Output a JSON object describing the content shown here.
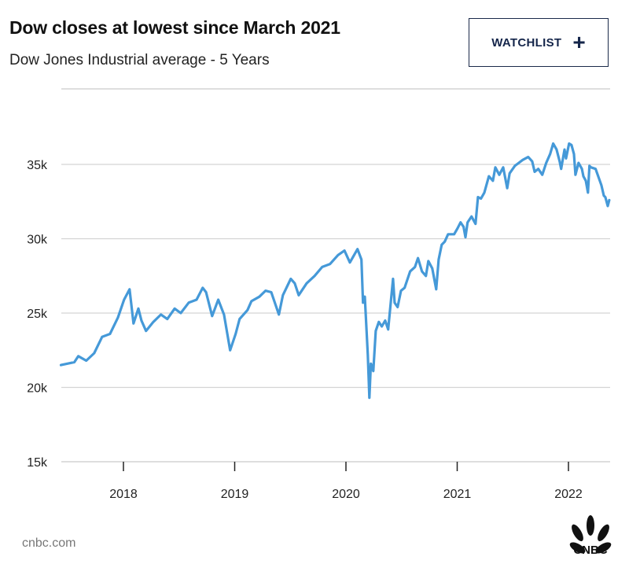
{
  "header": {
    "title": "Dow closes at lowest since March 2021",
    "subtitle": "Dow Jones Industrial average - 5 Years"
  },
  "watchlist_button": {
    "label": "WATCHLIST",
    "icon": "plus-icon"
  },
  "footer": {
    "source": "cnbc.com",
    "logo": "CNBC"
  },
  "colors": {
    "line": "#4599d8",
    "grid": "#d4d4d4",
    "button": "#14254a"
  },
  "chart_data": {
    "type": "line",
    "title": "Dow closes at lowest since March 2021",
    "subtitle": "Dow Jones Industrial average - 5 Years",
    "xlabel": "",
    "ylabel": "",
    "ylim": [
      15000,
      40000
    ],
    "yticks": [
      {
        "value": 15000,
        "label": "15k"
      },
      {
        "value": 20000,
        "label": "20k"
      },
      {
        "value": 25000,
        "label": "25k"
      },
      {
        "value": 30000,
        "label": "30k"
      },
      {
        "value": 35000,
        "label": "35k"
      }
    ],
    "xticks": [
      {
        "value": "2018-01-01",
        "label": "2018"
      },
      {
        "value": "2019-01-01",
        "label": "2019"
      },
      {
        "value": "2020-01-01",
        "label": "2020"
      },
      {
        "value": "2021-01-01",
        "label": "2021"
      },
      {
        "value": "2022-01-01",
        "label": "2022"
      }
    ],
    "xlim": [
      "2017-06-10",
      "2022-05-15"
    ],
    "grid": "horizontal",
    "legend": "none",
    "series": [
      {
        "color": "#4599d8",
        "points": [
          [
            "2017-06-10",
            21500
          ],
          [
            "2017-07-24",
            21700
          ],
          [
            "2017-08-06",
            22100
          ],
          [
            "2017-09-01",
            21800
          ],
          [
            "2017-09-27",
            22300
          ],
          [
            "2017-10-23",
            23400
          ],
          [
            "2017-11-18",
            23600
          ],
          [
            "2017-12-14",
            24700
          ],
          [
            "2018-01-03",
            25900
          ],
          [
            "2018-01-21",
            26600
          ],
          [
            "2018-02-03",
            24300
          ],
          [
            "2018-02-19",
            25300
          ],
          [
            "2018-03-01",
            24500
          ],
          [
            "2018-03-16",
            23800
          ],
          [
            "2018-04-09",
            24400
          ],
          [
            "2018-05-04",
            24900
          ],
          [
            "2018-05-25",
            24600
          ],
          [
            "2018-06-18",
            25300
          ],
          [
            "2018-07-08",
            25000
          ],
          [
            "2018-08-03",
            25700
          ],
          [
            "2018-08-29",
            25900
          ],
          [
            "2018-09-18",
            26700
          ],
          [
            "2018-09-29",
            26400
          ],
          [
            "2018-10-19",
            24800
          ],
          [
            "2018-11-08",
            25900
          ],
          [
            "2018-11-27",
            24900
          ],
          [
            "2018-12-17",
            22500
          ],
          [
            "2019-01-04",
            23600
          ],
          [
            "2019-01-17",
            24600
          ],
          [
            "2019-02-12",
            25200
          ],
          [
            "2019-02-25",
            25800
          ],
          [
            "2019-03-23",
            26100
          ],
          [
            "2019-04-12",
            26500
          ],
          [
            "2019-05-01",
            26400
          ],
          [
            "2019-05-26",
            24900
          ],
          [
            "2019-06-08",
            26200
          ],
          [
            "2019-07-04",
            27300
          ],
          [
            "2019-07-17",
            27000
          ],
          [
            "2019-07-30",
            26200
          ],
          [
            "2019-08-25",
            27000
          ],
          [
            "2019-09-20",
            27500
          ],
          [
            "2019-10-15",
            28100
          ],
          [
            "2019-11-10",
            28300
          ],
          [
            "2019-12-06",
            28900
          ],
          [
            "2019-12-27",
            29200
          ],
          [
            "2020-01-14",
            28400
          ],
          [
            "2020-02-08",
            29300
          ],
          [
            "2020-02-21",
            28600
          ],
          [
            "2020-02-26",
            25700
          ],
          [
            "2020-03-03",
            26100
          ],
          [
            "2020-03-13",
            22200
          ],
          [
            "2020-03-18",
            19300
          ],
          [
            "2020-03-23",
            21600
          ],
          [
            "2020-03-31",
            21100
          ],
          [
            "2020-04-08",
            23800
          ],
          [
            "2020-04-18",
            24400
          ],
          [
            "2020-04-28",
            24100
          ],
          [
            "2020-05-09",
            24500
          ],
          [
            "2020-05-19",
            23900
          ],
          [
            "2020-06-04",
            27300
          ],
          [
            "2020-06-09",
            25700
          ],
          [
            "2020-06-19",
            25400
          ],
          [
            "2020-06-30",
            26500
          ],
          [
            "2020-07-12",
            26700
          ],
          [
            "2020-07-30",
            27800
          ],
          [
            "2020-08-15",
            28100
          ],
          [
            "2020-08-25",
            28700
          ],
          [
            "2020-09-07",
            27800
          ],
          [
            "2020-09-20",
            27500
          ],
          [
            "2020-09-28",
            28500
          ],
          [
            "2020-10-11",
            28000
          ],
          [
            "2020-10-24",
            26600
          ],
          [
            "2020-11-01",
            28600
          ],
          [
            "2020-11-11",
            29600
          ],
          [
            "2020-11-21",
            29800
          ],
          [
            "2020-12-02",
            30300
          ],
          [
            "2020-12-22",
            30300
          ],
          [
            "2021-01-02",
            30700
          ],
          [
            "2021-01-12",
            31100
          ],
          [
            "2021-01-22",
            30800
          ],
          [
            "2021-01-28",
            30100
          ],
          [
            "2021-02-04",
            31100
          ],
          [
            "2021-02-17",
            31500
          ],
          [
            "2021-03-02",
            31000
          ],
          [
            "2021-03-10",
            32800
          ],
          [
            "2021-03-20",
            32700
          ],
          [
            "2021-03-31",
            33100
          ],
          [
            "2021-04-15",
            34200
          ],
          [
            "2021-04-28",
            33900
          ],
          [
            "2021-05-06",
            34800
          ],
          [
            "2021-05-19",
            34300
          ],
          [
            "2021-06-01",
            34800
          ],
          [
            "2021-06-14",
            33400
          ],
          [
            "2021-06-22",
            34400
          ],
          [
            "2021-07-09",
            34900
          ],
          [
            "2021-07-22",
            35100
          ],
          [
            "2021-08-04",
            35300
          ],
          [
            "2021-08-22",
            35500
          ],
          [
            "2021-09-04",
            35200
          ],
          [
            "2021-09-12",
            34500
          ],
          [
            "2021-09-24",
            34700
          ],
          [
            "2021-10-07",
            34300
          ],
          [
            "2021-10-20",
            35100
          ],
          [
            "2021-11-02",
            35700
          ],
          [
            "2021-11-12",
            36400
          ],
          [
            "2021-11-23",
            36000
          ],
          [
            "2021-12-03",
            35200
          ],
          [
            "2021-12-08",
            34700
          ],
          [
            "2021-12-19",
            36000
          ],
          [
            "2021-12-24",
            35400
          ],
          [
            "2022-01-03",
            36400
          ],
          [
            "2022-01-11",
            36300
          ],
          [
            "2022-01-19",
            35700
          ],
          [
            "2022-01-24",
            34300
          ],
          [
            "2022-02-03",
            35100
          ],
          [
            "2022-02-14",
            34700
          ],
          [
            "2022-02-19",
            34200
          ],
          [
            "2022-02-27",
            33900
          ],
          [
            "2022-03-06",
            33100
          ],
          [
            "2022-03-11",
            34900
          ],
          [
            "2022-03-16",
            34800
          ],
          [
            "2022-03-31",
            34700
          ],
          [
            "2022-04-19",
            33600
          ],
          [
            "2022-04-27",
            32900
          ],
          [
            "2022-05-02",
            32800
          ],
          [
            "2022-05-10",
            32200
          ],
          [
            "2022-05-15",
            32600
          ]
        ]
      }
    ]
  }
}
